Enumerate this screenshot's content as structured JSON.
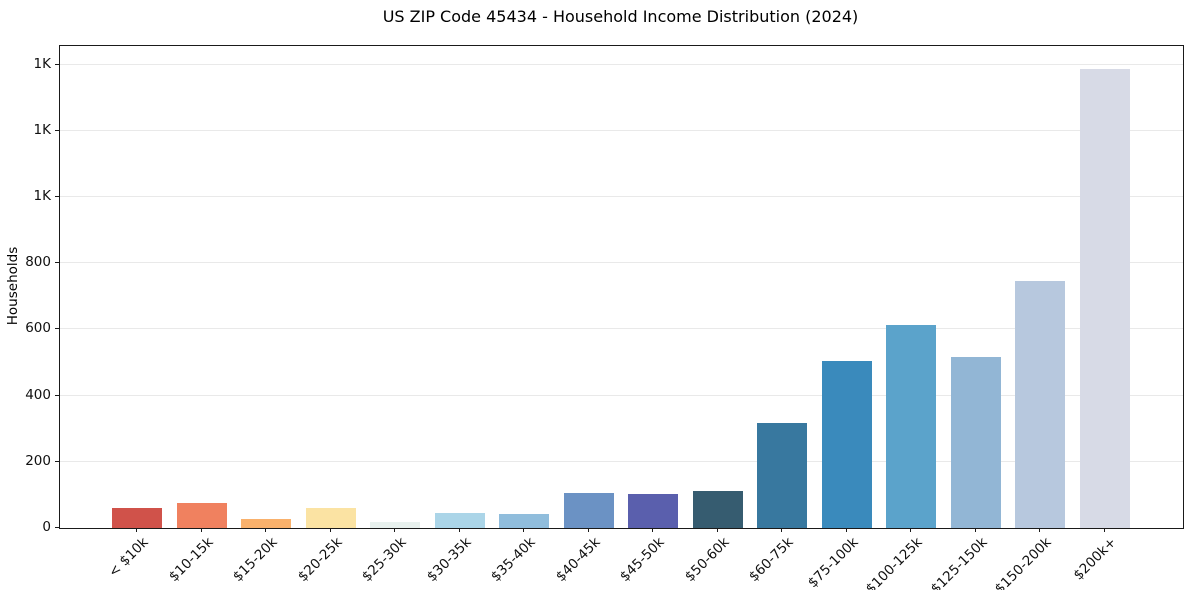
{
  "chart_data": {
    "type": "bar",
    "title": "US ZIP Code 45434 - Household Income Distribution (2024)",
    "xlabel": "",
    "ylabel": "Households",
    "categories": [
      "< $10k",
      "$10-15k",
      "$15-20k",
      "$20-25k",
      "$25-30k",
      "$30-35k",
      "$35-40k",
      "$40-45k",
      "$45-50k",
      "$50-60k",
      "$60-75k",
      "$75-100k",
      "$100-125k",
      "$125-150k",
      "$150-200k",
      "$200k+"
    ],
    "values": [
      59,
      76,
      27,
      60,
      19,
      45,
      42,
      105,
      103,
      111,
      317,
      504,
      613,
      516,
      745,
      1387
    ],
    "bar_colors": [
      "#d0524a",
      "#f0815f",
      "#f9b16c",
      "#fbe3a3",
      "#e8f1ee",
      "#abd5e8",
      "#90bddc",
      "#6b92c4",
      "#5a5fad",
      "#365c70",
      "#38789f",
      "#3a8abc",
      "#5ba3cb",
      "#92b6d5",
      "#b7c8de",
      "#d7dae6"
    ],
    "ylim": [
      0,
      1456
    ],
    "yticks": [
      0,
      200,
      400,
      600,
      800,
      1000,
      1200,
      1400
    ],
    "ytick_labels": [
      "0",
      "200",
      "400",
      "600",
      "800",
      "1K",
      "1K",
      "1K"
    ],
    "grid": "horizontal",
    "gridline_color": "#e9e9e9",
    "legend": "none",
    "background_color": "#ffffff"
  }
}
